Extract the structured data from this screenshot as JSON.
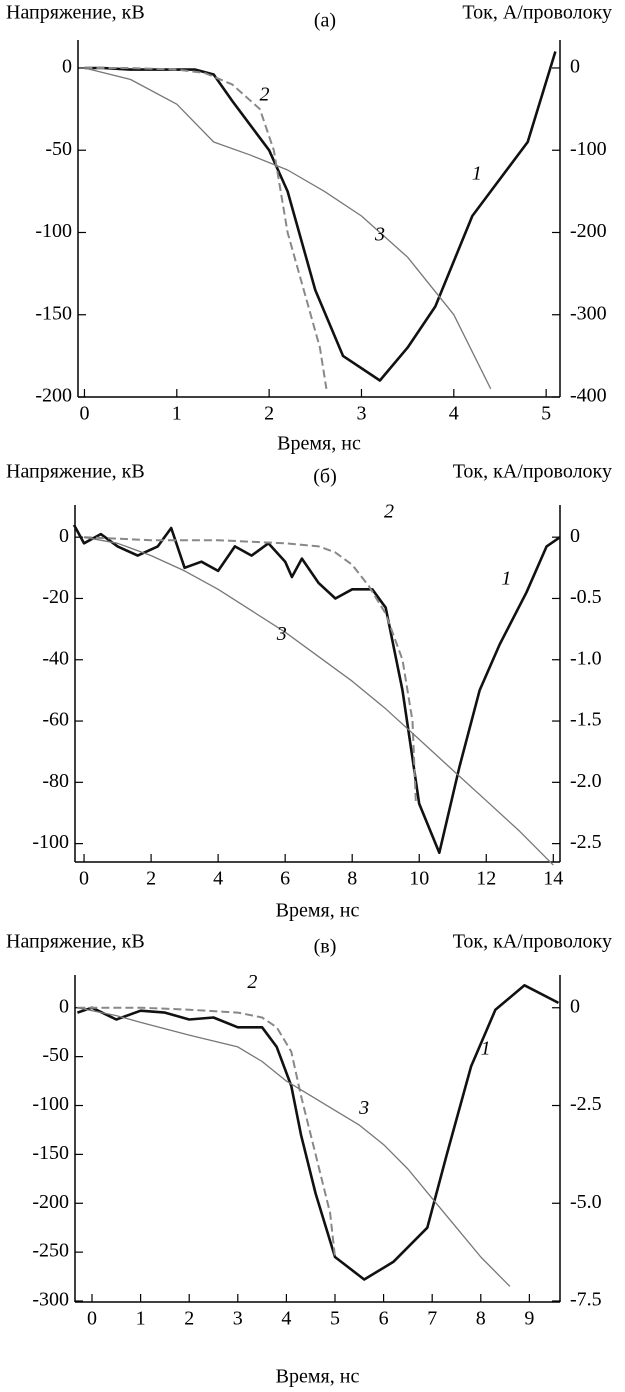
{
  "chart_data": [
    {
      "type": "line",
      "title": "(а)",
      "y_label": "Напряжение, кВ",
      "y2_label": "Ток, А/проволоку",
      "x_label": "Время, нс",
      "xlim": [
        -0.07,
        5.15
      ],
      "xticks": [
        0,
        1,
        2,
        3,
        4,
        5
      ],
      "ylim": [
        -200,
        17
      ],
      "yticks": [
        0,
        -50,
        -100,
        -150,
        -200
      ],
      "y2lim": [
        -400,
        34
      ],
      "y2ticks": [
        0,
        -100,
        -200,
        -300,
        -400
      ],
      "series": [
        {
          "name": "1",
          "color": "#111111",
          "linestyle": "solid",
          "width": 2.6,
          "x": [
            0,
            0.2,
            0.5,
            1,
            1.2,
            1.4,
            1.6,
            2,
            2.2,
            2.5,
            2.8,
            3.2,
            3.5,
            3.8,
            4.2,
            4.4,
            4.8,
            5.1
          ],
          "values": [
            0,
            0,
            -1,
            -1,
            -1,
            -4,
            -20,
            -50,
            -75,
            -135,
            -175,
            -190,
            -170,
            -145,
            -90,
            -75,
            -45,
            10
          ]
        },
        {
          "name": "2",
          "color": "#888888",
          "linestyle": "dashed",
          "width": 2,
          "x": [
            0,
            0.5,
            1,
            1.3,
            1.6,
            1.9,
            2.05,
            2.2,
            2.4,
            2.55,
            2.62
          ],
          "values": [
            0,
            0,
            -1,
            -3,
            -10,
            -25,
            -50,
            -100,
            -140,
            -170,
            -195
          ]
        },
        {
          "name": "3",
          "color": "#777777",
          "linestyle": "solid",
          "width": 1.3,
          "x": [
            0,
            0.5,
            1,
            1.4,
            1.8,
            2.2,
            2.6,
            3,
            3.5,
            4,
            4.4
          ],
          "values": [
            0,
            -7,
            -22,
            -45,
            -53,
            -62,
            -75,
            -90,
            -115,
            -150,
            -195
          ]
        }
      ]
    },
    {
      "type": "line",
      "title": "(б)",
      "y_label": "Напряжение, кВ",
      "y2_label": "Ток, кА/проволоку",
      "x_label": "Время, нс",
      "xlim": [
        -0.27,
        14.2
      ],
      "xticks": [
        0,
        2,
        4,
        6,
        8,
        10,
        12,
        14
      ],
      "ylim": [
        -106,
        10.5
      ],
      "yticks": [
        0,
        -20,
        -40,
        -60,
        -80,
        -100
      ],
      "y2lim": [
        -2.65,
        0.2625
      ],
      "y2ticks": [
        0,
        -0.5,
        {
          "value": -1,
          "label": "-1.0"
        },
        -1.5,
        {
          "value": -2,
          "label": "-2.0"
        },
        -2.5
      ],
      "series": [
        {
          "name": "1",
          "color": "#111111",
          "linestyle": "solid",
          "width": 2.6,
          "x": [
            -0.3,
            0,
            0.5,
            1,
            1.6,
            2.2,
            2.6,
            3,
            3.5,
            4,
            4.5,
            5,
            5.5,
            6,
            6.2,
            6.5,
            7,
            7.5,
            8,
            8.6,
            9,
            9.5,
            10,
            10.6,
            11.2,
            11.8,
            12.4,
            13.2,
            13.8,
            14.2
          ],
          "values": [
            4,
            -2,
            1,
            -3,
            -6,
            -3,
            3,
            -10,
            -8,
            -11,
            -3,
            -6,
            -2,
            -8,
            -13,
            -7,
            -15,
            -20,
            -17,
            -17,
            -23,
            -50,
            -87,
            -103,
            -75,
            -50,
            -35,
            -18,
            -3,
            0
          ]
        },
        {
          "name": "2",
          "color": "#888888",
          "linestyle": "dashed",
          "width": 2,
          "x": [
            0,
            2,
            4,
            6,
            7,
            7.5,
            8,
            8.5,
            9,
            9.5,
            9.8,
            9.9
          ],
          "values": [
            0,
            -1,
            -1,
            -2,
            -3,
            -5,
            -9,
            -16,
            -25,
            -40,
            -60,
            -87
          ]
        },
        {
          "name": "3",
          "color": "#777777",
          "linestyle": "solid",
          "width": 1.3,
          "x": [
            0,
            1,
            2,
            3,
            4,
            5,
            6,
            7,
            8,
            9,
            10,
            11,
            12,
            13,
            14
          ],
          "values": [
            0,
            -2,
            -6,
            -11,
            -17,
            -24,
            -31,
            -39,
            -47,
            -56,
            -66,
            -76,
            -86,
            -96,
            -107
          ]
        }
      ]
    },
    {
      "type": "line",
      "title": "(в)",
      "y_label": "Напряжение, кВ",
      "y2_label": "Ток, кА/проволоку",
      "x_label": "Время, нс",
      "xlim": [
        -0.35,
        9.63
      ],
      "xticks": [
        0,
        1,
        2,
        3,
        4,
        5,
        6,
        7,
        8,
        9
      ],
      "ylim": [
        -301,
        33.5
      ],
      "yticks": [
        0,
        -50,
        -100,
        -150,
        -200,
        -250,
        -300
      ],
      "y2lim": [
        -7.525,
        0.8375
      ],
      "y2ticks": [
        0,
        -2.5,
        {
          "value": -5,
          "label": "-5.0"
        },
        -7.5
      ],
      "series": [
        {
          "name": "1",
          "color": "#111111",
          "linestyle": "solid",
          "width": 2.6,
          "x": [
            -0.3,
            0,
            0.5,
            1,
            1.5,
            2,
            2.5,
            3,
            3.5,
            3.8,
            4.1,
            4.3,
            4.6,
            5,
            5.6,
            6.2,
            6.9,
            7.3,
            7.8,
            8.3,
            8.9,
            9.6
          ],
          "values": [
            -5,
            0,
            -12,
            -3,
            -5,
            -12,
            -10,
            -20,
            -20,
            -40,
            -80,
            -130,
            -190,
            -255,
            -278,
            -260,
            -225,
            -150,
            -60,
            -2,
            23,
            5
          ]
        },
        {
          "name": "2",
          "color": "#888888",
          "linestyle": "dashed",
          "width": 2,
          "x": [
            -0.3,
            1,
            2,
            3,
            3.5,
            3.8,
            4.1,
            4.3,
            4.6,
            4.9,
            5
          ],
          "values": [
            0,
            0,
            -2,
            -5,
            -10,
            -20,
            -45,
            -90,
            -150,
            -210,
            -255
          ]
        },
        {
          "name": "3",
          "color": "#777777",
          "linestyle": "solid",
          "width": 1.3,
          "x": [
            -0.3,
            0.5,
            1,
            2,
            3,
            3.5,
            4,
            4.5,
            5,
            5.5,
            6,
            6.5,
            7,
            7.5,
            8,
            8.6
          ],
          "values": [
            0,
            -8,
            -15,
            -28,
            -40,
            -55,
            -75,
            -90,
            -105,
            -120,
            -140,
            -165,
            -195,
            -225,
            -255,
            -285
          ]
        }
      ]
    }
  ]
}
